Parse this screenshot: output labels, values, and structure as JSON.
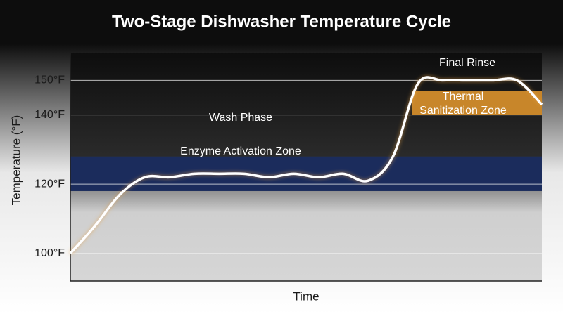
{
  "chart_data": {
    "type": "line",
    "title": "Two-Stage Dishwasher Temperature Cycle",
    "y_label": "Temperature (°F)",
    "x_label": "Time",
    "categories": [
      null,
      null,
      null,
      null,
      null,
      null,
      null,
      null,
      null,
      null,
      null,
      null,
      null,
      null,
      null,
      null,
      null,
      null,
      null,
      null
    ],
    "values": [
      100,
      108,
      117,
      122,
      122,
      123,
      123,
      123,
      122,
      123,
      122,
      123,
      121,
      128,
      149,
      150,
      150,
      150,
      150,
      143
    ],
    "color": "#ffffff",
    "ylim": [
      92,
      158
    ],
    "yticks": [
      {
        "value": 100,
        "label": "100°F"
      },
      {
        "value": 120,
        "label": "120°F"
      },
      {
        "value": 140,
        "label": "140°F"
      },
      {
        "value": 150,
        "label": "150°F"
      }
    ],
    "grid": true,
    "bands": [
      {
        "name": "Enzyme Activation Zone",
        "range": [
          118,
          128
        ],
        "color": "#1b2c5c"
      },
      {
        "name": "Thermal Sanitization Zone",
        "range": [
          140,
          147
        ],
        "color": "#c8862a"
      }
    ],
    "annotations": [
      "Wash Phase",
      "Final Rinse"
    ]
  }
}
